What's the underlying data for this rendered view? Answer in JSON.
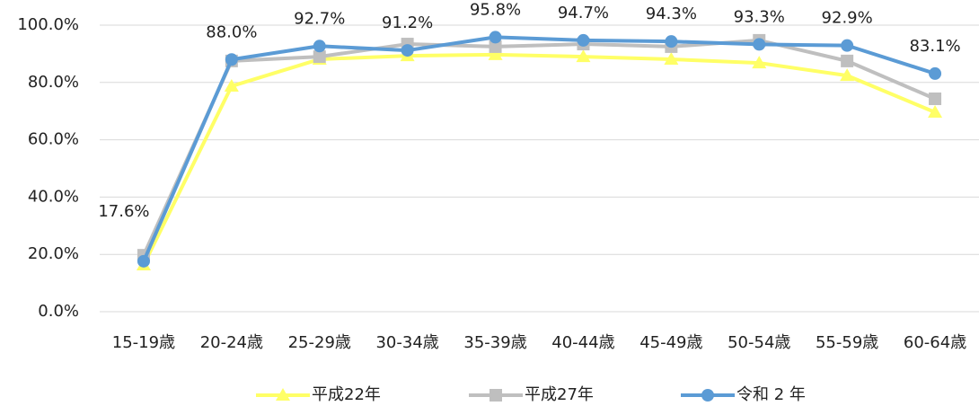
{
  "chart_data": {
    "type": "line",
    "categories": [
      "15-19歳",
      "20-24歳",
      "25-29歳",
      "30-34歳",
      "35-39歳",
      "40-44歳",
      "45-49歳",
      "50-54歳",
      "55-59歳",
      "60-64歳"
    ],
    "series": [
      {
        "name": "平成22年",
        "color": "#ffff66",
        "marker": "triangle",
        "values": [
          16.3,
          78.7,
          88.1,
          89.3,
          89.7,
          89.0,
          88.1,
          86.8,
          82.4,
          69.6
        ]
      },
      {
        "name": "平成27年",
        "color": "#bfbfbf",
        "marker": "square",
        "values": [
          19.7,
          87.5,
          89.0,
          93.4,
          92.5,
          93.4,
          92.5,
          94.7,
          87.5,
          74.3
        ]
      },
      {
        "name": "令和 2 年",
        "color": "#5b9bd5",
        "marker": "circle",
        "values": [
          17.6,
          88.0,
          92.7,
          91.2,
          95.8,
          94.7,
          94.3,
          93.3,
          92.9,
          83.1
        ],
        "value_labels": [
          "17.6%",
          "88.0%",
          "92.7%",
          "91.2%",
          "95.8%",
          "94.7%",
          "94.3%",
          "93.3%",
          "92.9%",
          "83.1%"
        ]
      }
    ],
    "ylim": [
      0,
      100
    ],
    "yticks": [
      {
        "value": 0,
        "label": "0.0%"
      },
      {
        "value": 20,
        "label": "20.0%"
      },
      {
        "value": 40,
        "label": "40.0%"
      },
      {
        "value": 60,
        "label": "60.0%"
      },
      {
        "value": 80,
        "label": "80.0%"
      },
      {
        "value": 100,
        "label": "100.0%"
      }
    ],
    "grid": true,
    "legend": "bottom"
  }
}
